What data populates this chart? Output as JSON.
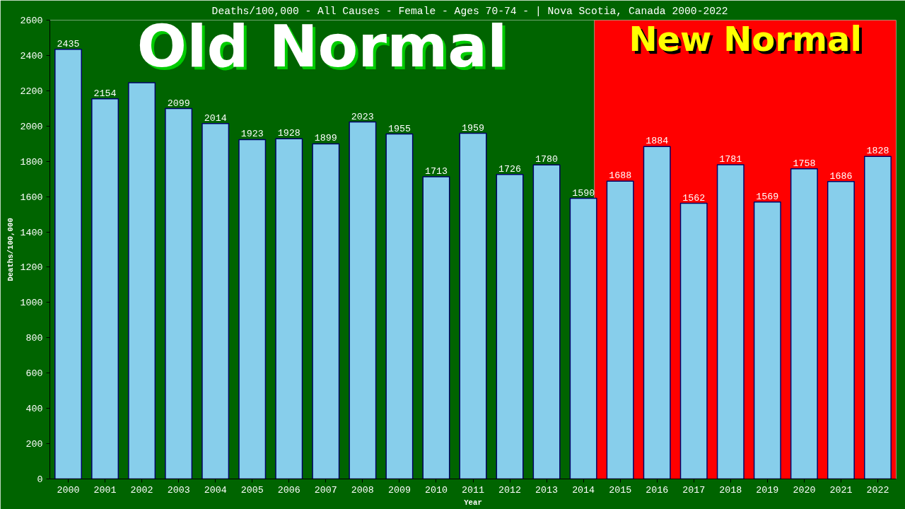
{
  "chart_data": {
    "type": "bar",
    "title": "Deaths/100,000 - All Causes - Female - Ages 70-74 -  | Nova Scotia, Canada 2000-2022",
    "xlabel": "Year",
    "ylabel": "Deaths/100,000",
    "x": [
      2000,
      2001,
      2002,
      2003,
      2004,
      2005,
      2006,
      2007,
      2008,
      2009,
      2010,
      2011,
      2012,
      2013,
      2014,
      2015,
      2016,
      2017,
      2018,
      2019,
      2020,
      2021,
      2022
    ],
    "values": [
      2435,
      2154,
      2245,
      2099,
      2014,
      1923,
      1928,
      1899,
      2023,
      1955,
      1713,
      1959,
      1726,
      1780,
      1590,
      1688,
      1884,
      1562,
      1781,
      1569,
      1758,
      1686,
      1828
    ],
    "value_labels": [
      "2435",
      "2154",
      null,
      "2099",
      "2014",
      "1923",
      "1928",
      "1899",
      "2023",
      "1955",
      "1713",
      "1959",
      "1726",
      "1780",
      "1590",
      "1688",
      "1884",
      "1562",
      "1781",
      "1569",
      "1758",
      "1686",
      "1828"
    ],
    "color": "#87ceeb",
    "xlim": [
      1999.5,
      2022.5
    ],
    "xticks": [
      2000,
      2001,
      2002,
      2003,
      2004,
      2005,
      2006,
      2007,
      2008,
      2009,
      2010,
      2011,
      2012,
      2013,
      2014,
      2015,
      2016,
      2017,
      2018,
      2019,
      2020,
      2021,
      2022
    ],
    "ylim": [
      0,
      2600
    ],
    "yticks": [
      0,
      200,
      400,
      600,
      800,
      1000,
      1200,
      1400,
      1600,
      1800,
      2000,
      2200,
      2400,
      2600
    ],
    "bands": [
      {
        "axis": "x",
        "from": 1999.5,
        "to": 2014.3,
        "label": "Old Normal",
        "color": "#006400"
      },
      {
        "axis": "x",
        "from": 2014.3,
        "to": 2022.5,
        "label": "New Normal",
        "color": "#ff0000"
      }
    ],
    "grid": false
  }
}
